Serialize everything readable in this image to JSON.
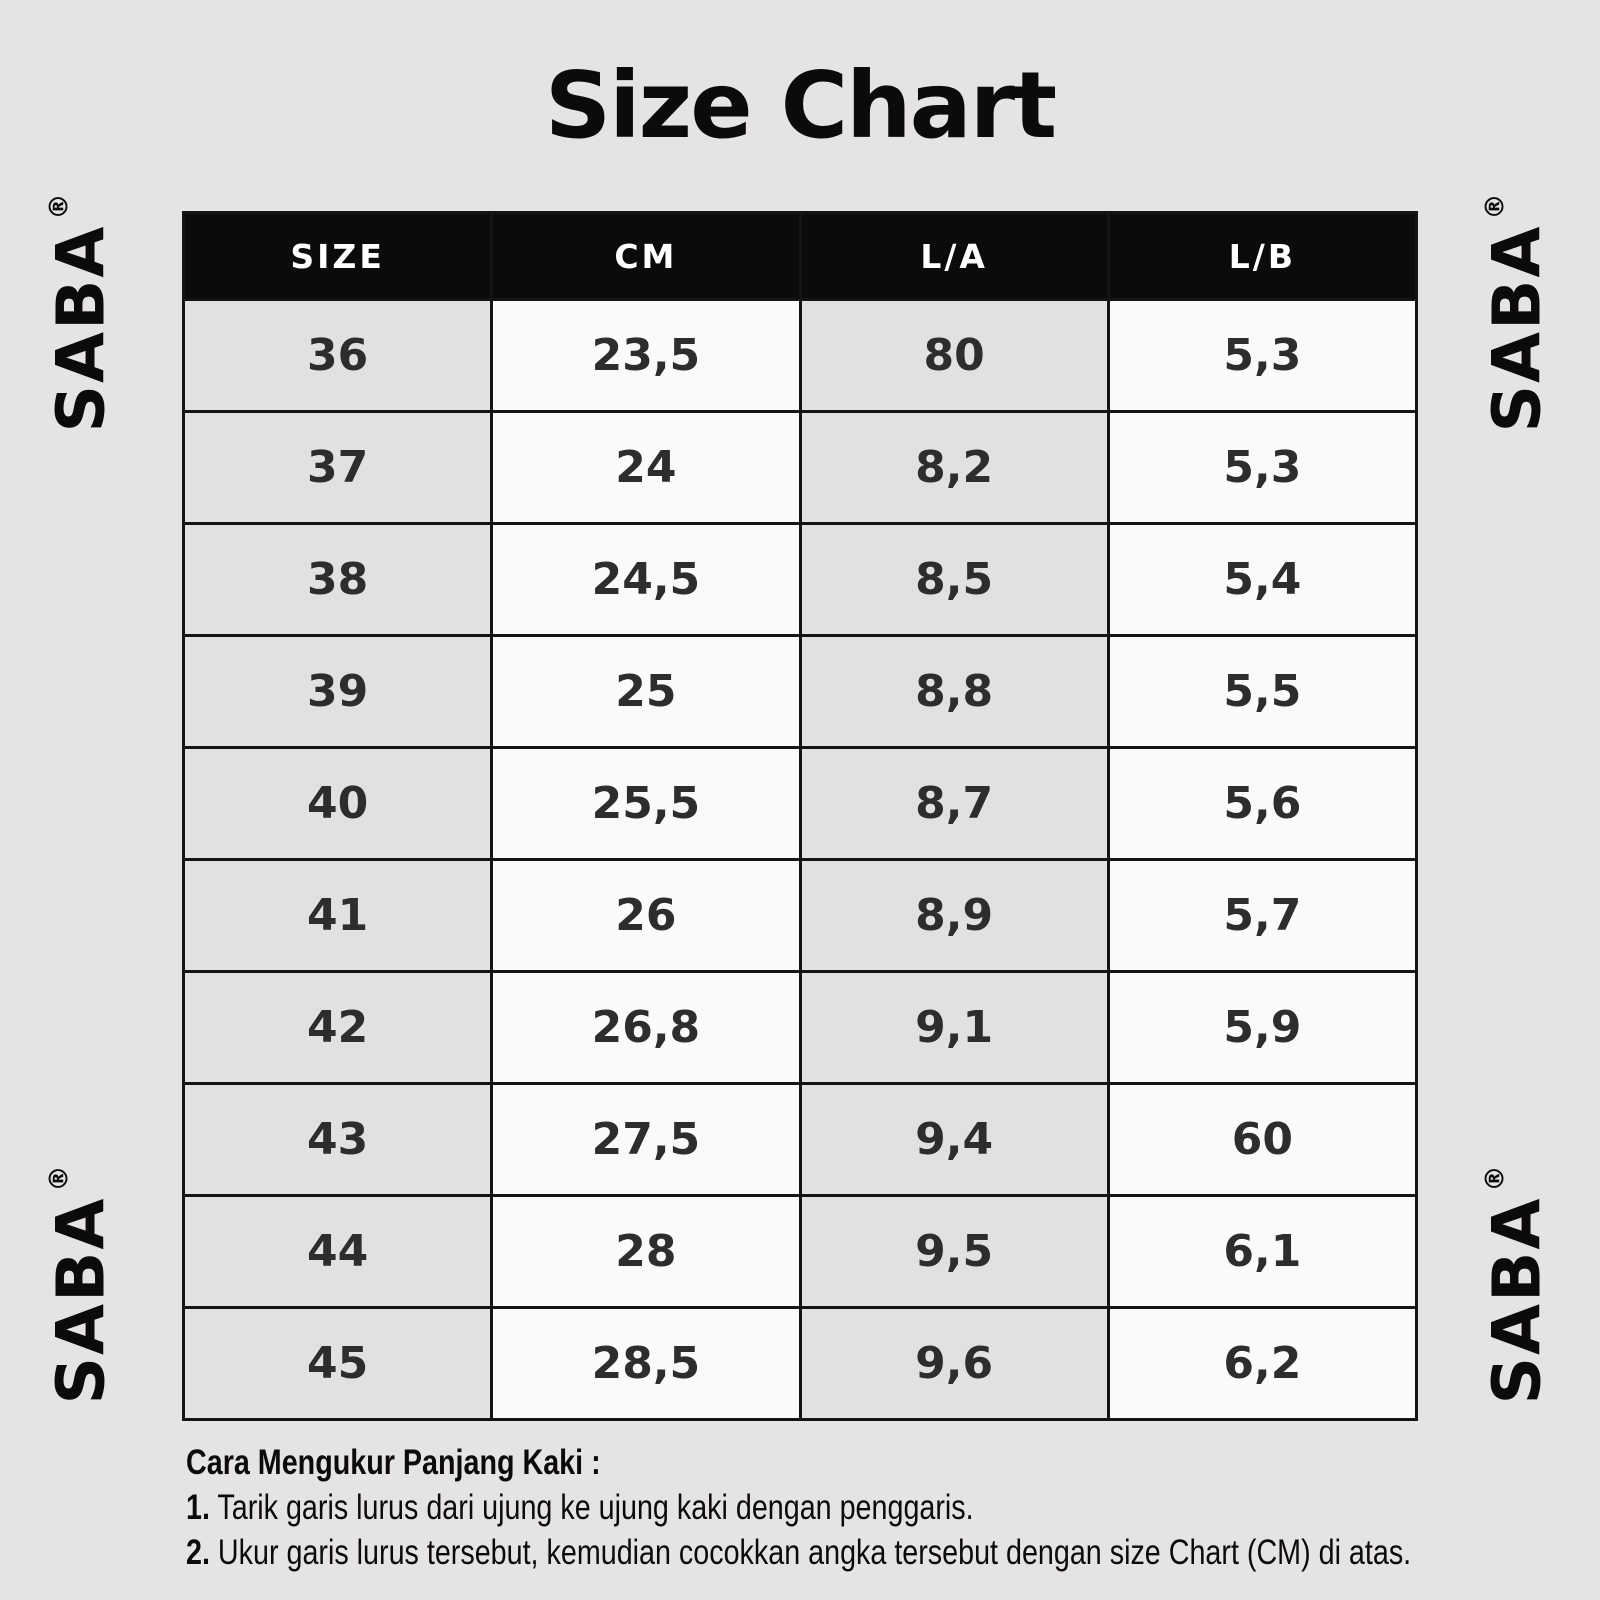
{
  "page": {
    "background_color": "#e6e4e3",
    "accent_black": "#0d0a0b"
  },
  "title": "Size Chart",
  "brand": {
    "name": "SABA",
    "registered": "®"
  },
  "chart_data": {
    "type": "table",
    "title": "Size Chart",
    "columns": [
      "SIZE",
      "CM",
      "L/A",
      "L/B"
    ],
    "rows": [
      [
        "36",
        "23,5",
        "80",
        "5,3"
      ],
      [
        "37",
        "24",
        "8,2",
        "5,3"
      ],
      [
        "38",
        "24,5",
        "8,5",
        "5,4"
      ],
      [
        "39",
        "25",
        "8,8",
        "5,5"
      ],
      [
        "40",
        "25,5",
        "8,7",
        "5,6"
      ],
      [
        "41",
        "26",
        "8,9",
        "5,7"
      ],
      [
        "42",
        "26,8",
        "9,1",
        "5,9"
      ],
      [
        "43",
        "27,5",
        "9,4",
        "60"
      ],
      [
        "44",
        "28",
        "9,5",
        "6,1"
      ],
      [
        "45",
        "28,5",
        "9,6",
        "6,2"
      ]
    ],
    "layout": {
      "header_bg": "#0d0a0b",
      "header_text_color": "#ffffff",
      "odd_column_bg": "#e3e1e0",
      "even_column_bg": "#fbfafa",
      "border_color": "#161314"
    }
  },
  "footer": {
    "heading": "Cara Mengukur Panjang Kaki :",
    "steps": [
      {
        "num": "1.",
        "text": "Tarik garis lurus dari ujung ke ujung kaki dengan penggaris."
      },
      {
        "num": "2.",
        "text": "Ukur garis lurus tersebut, kemudian cocokkan angka tersebut dengan size Chart (CM) di atas."
      }
    ]
  }
}
